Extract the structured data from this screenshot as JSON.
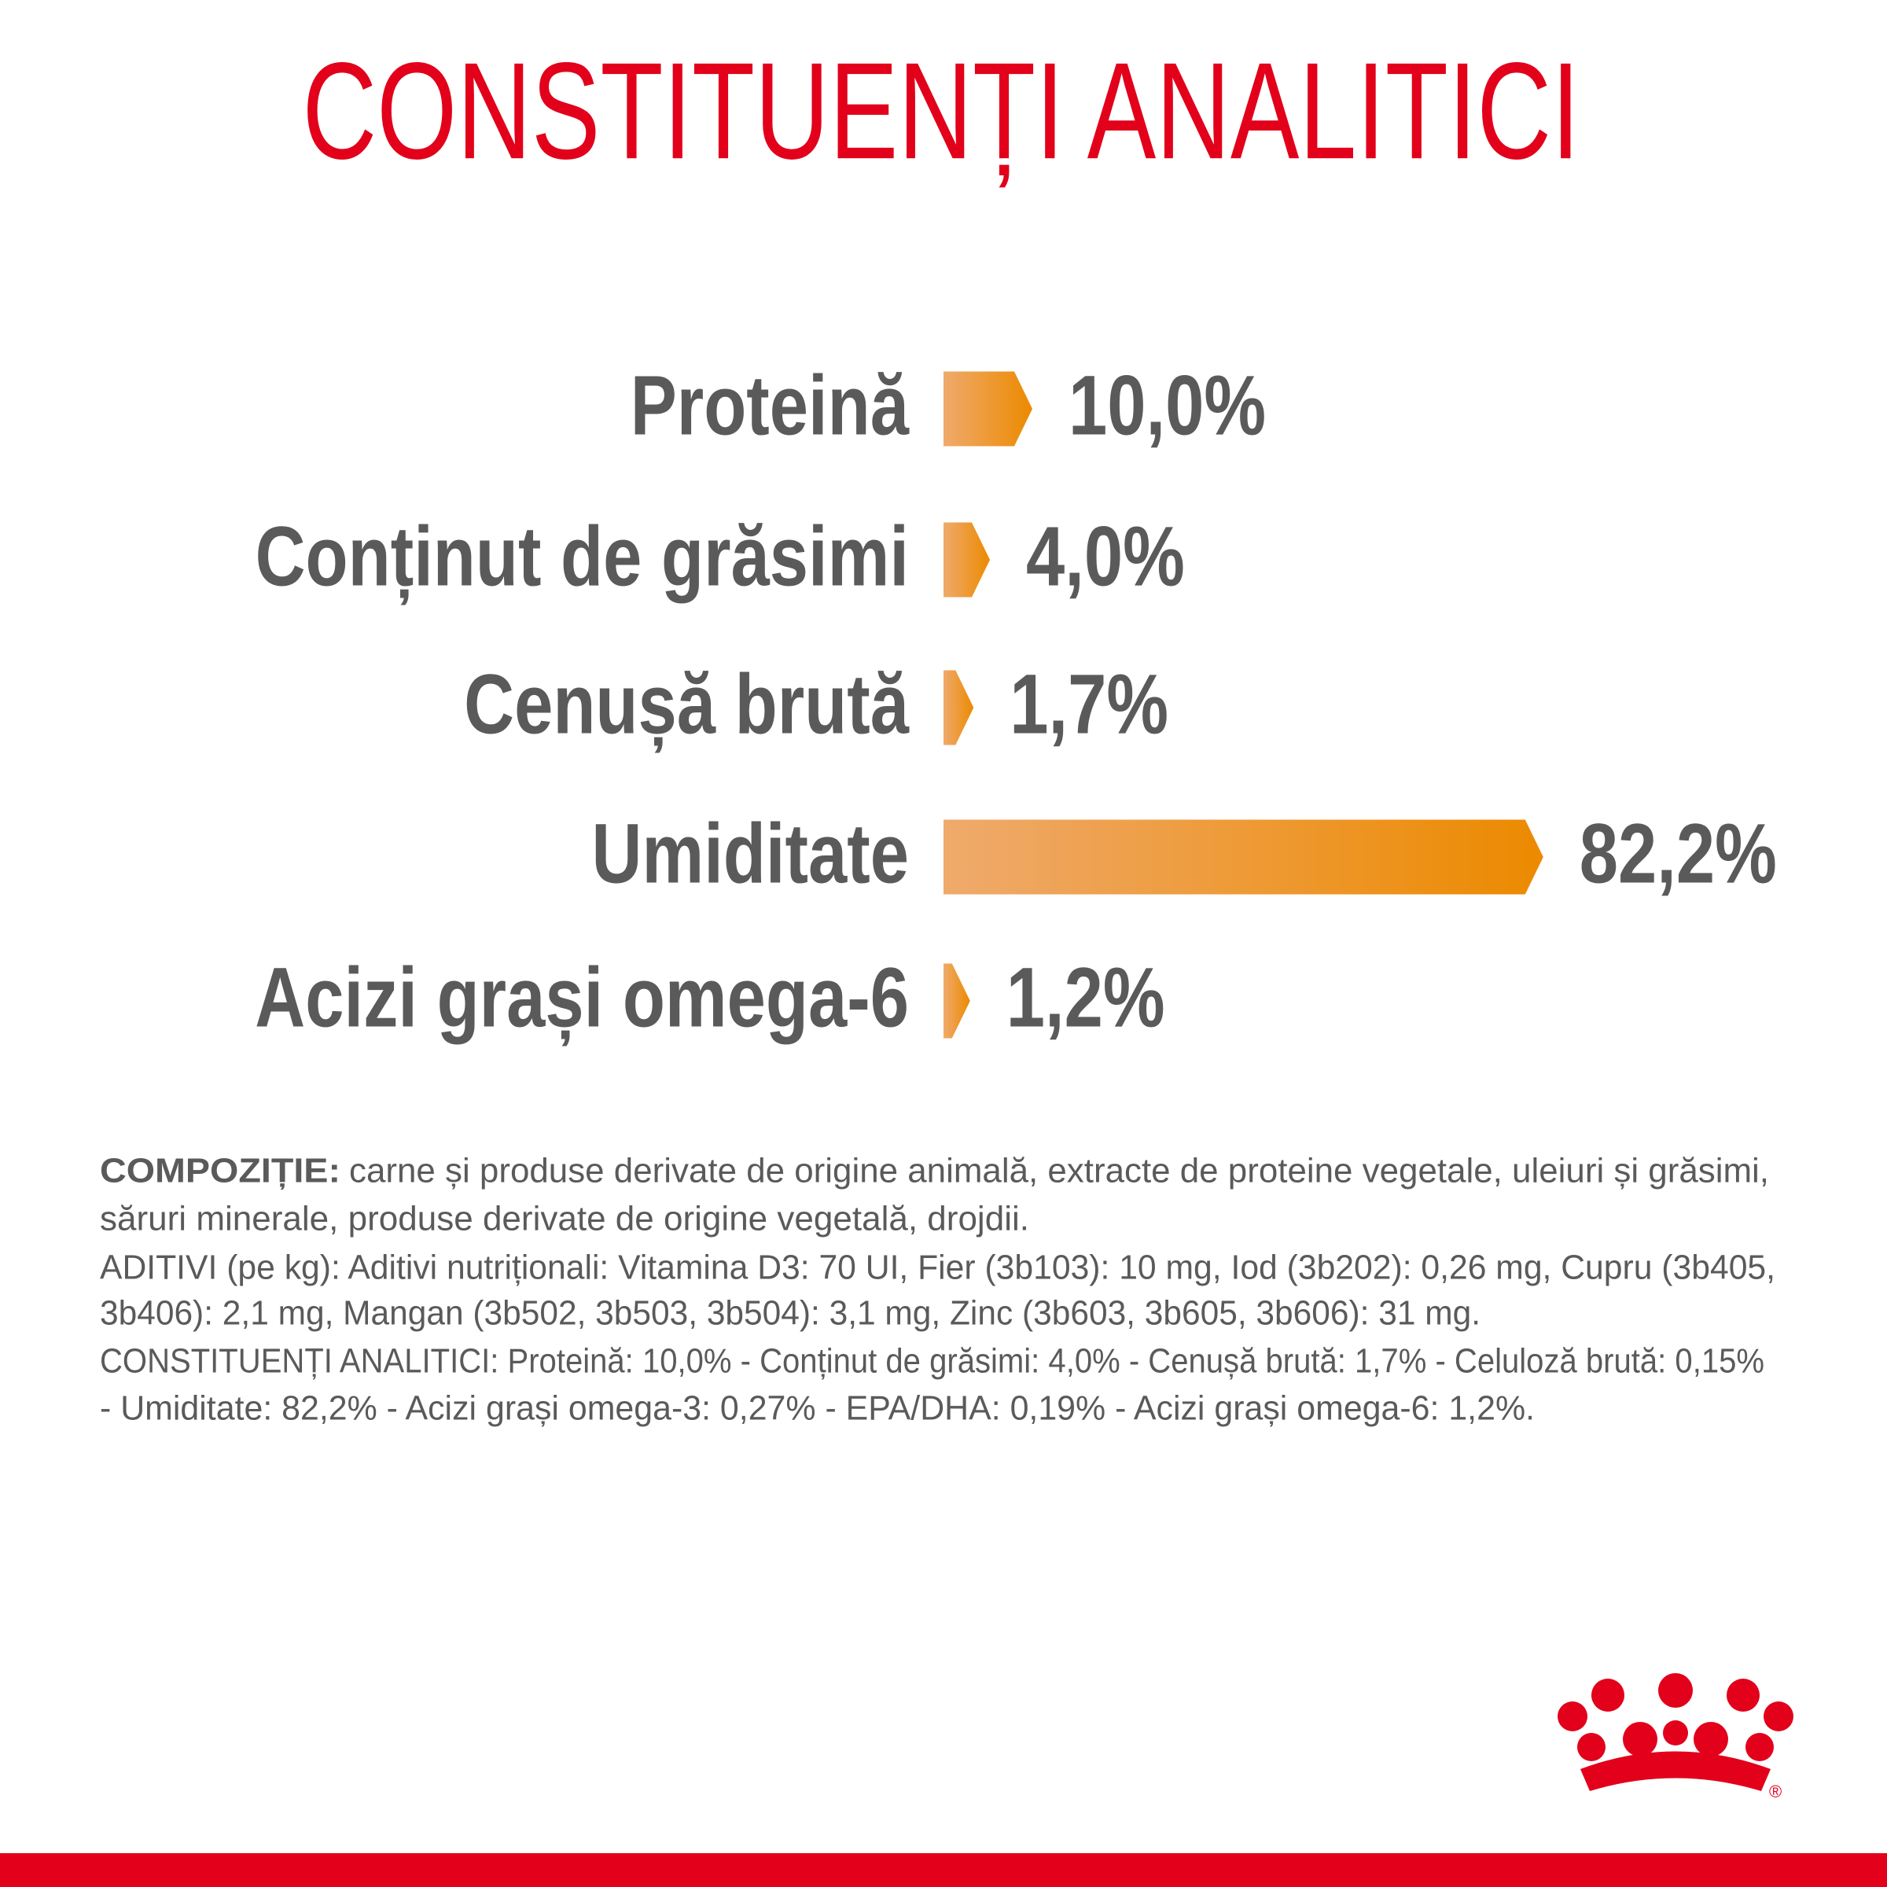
{
  "chart_data": {
    "type": "bar",
    "orientation": "horizontal",
    "title": "CONSTITUENȚI ANALITICI",
    "categories": [
      "Proteină",
      "Conținut de grăsimi",
      "Cenușă brută",
      "Umiditate",
      "Acizi grași omega-6"
    ],
    "values": [
      10.0,
      4.0,
      1.7,
      82.2,
      1.2
    ],
    "value_labels": [
      "10,0%",
      "4,0%",
      "1,7%",
      "82,2%",
      "1,2%"
    ],
    "color": "#ec8a00",
    "gradient_start_color": "#efaa6c"
  },
  "composition": {
    "label": "COMPOZIȚIE:",
    "lines": [
      "carne și produse derivate de origine animală, extracte de proteine vegetale, uleiuri și grăsimi,",
      "săruri minerale, produse derivate de origine vegetală, drojdii.",
      "ADITIVI (pe kg): Aditivi nutriționali: Vitamina D3: 70 UI, Fier (3b103): 10 mg, Iod (3b202): 0,26 mg, Cupru (3b405,",
      "3b406): 2,1 mg, Mangan (3b502, 3b503, 3b504): 3,1 mg, Zinc (3b603, 3b605, 3b606): 31 mg.",
      "CONSTITUENȚI ANALITICI: Proteină: 10,0% - Conținut de grăsimi: 4,0% - Cenușă brută: 1,7% - Celuloză brută: 0,15%",
      "- Umiditate: 82,2% - Acizi grași omega-3: 0,27% - EPA/DHA: 0,19% - Acizi grași omega-6: 1,2%."
    ]
  },
  "logo": {
    "mark": "®"
  }
}
